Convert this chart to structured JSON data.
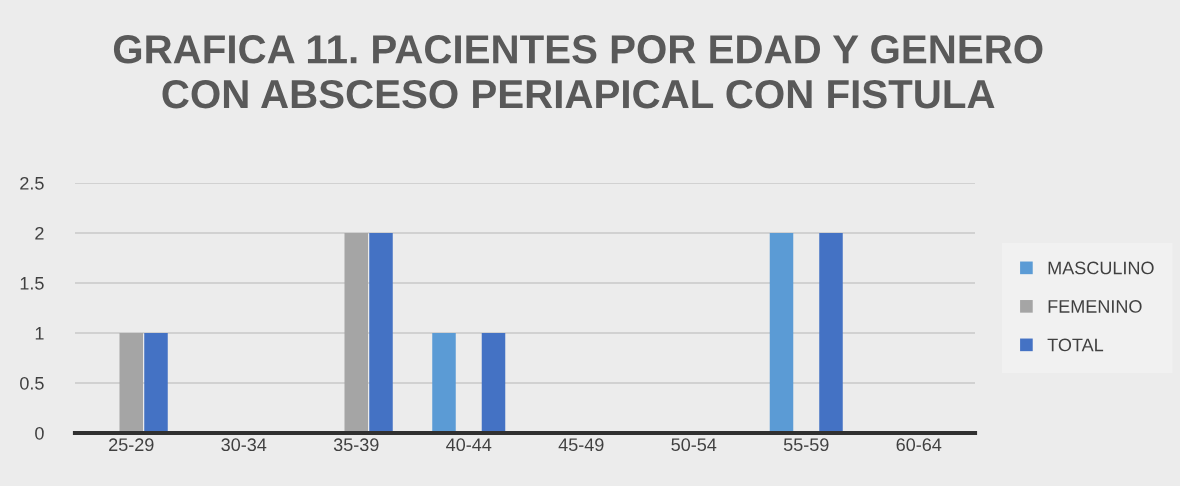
{
  "chart_data": {
    "type": "bar",
    "title": "GRAFICA 11. PACIENTES POR EDAD Y GENERO\nCON ABSCESO PERIAPICAL CON FISTULA",
    "categories": [
      "25-29",
      "30-34",
      "35-39",
      "40-44",
      "45-49",
      "50-54",
      "55-59",
      "60-64"
    ],
    "series": [
      {
        "name": "MASCULINO",
        "color": "#5b9bd5",
        "values": [
          0,
          0,
          0,
          1,
          0,
          0,
          2,
          0
        ]
      },
      {
        "name": "FEMENINO",
        "color": "#a5a5a5",
        "values": [
          1,
          0,
          2,
          0,
          0,
          0,
          0,
          0
        ]
      },
      {
        "name": "TOTAL",
        "color": "#4472c4",
        "values": [
          1,
          0,
          2,
          1,
          0,
          0,
          2,
          0
        ]
      }
    ],
    "ylim": [
      0,
      2.5
    ],
    "yticks": [
      0,
      0.5,
      1,
      1.5,
      2,
      2.5
    ],
    "grid": "y",
    "legend": "right"
  }
}
